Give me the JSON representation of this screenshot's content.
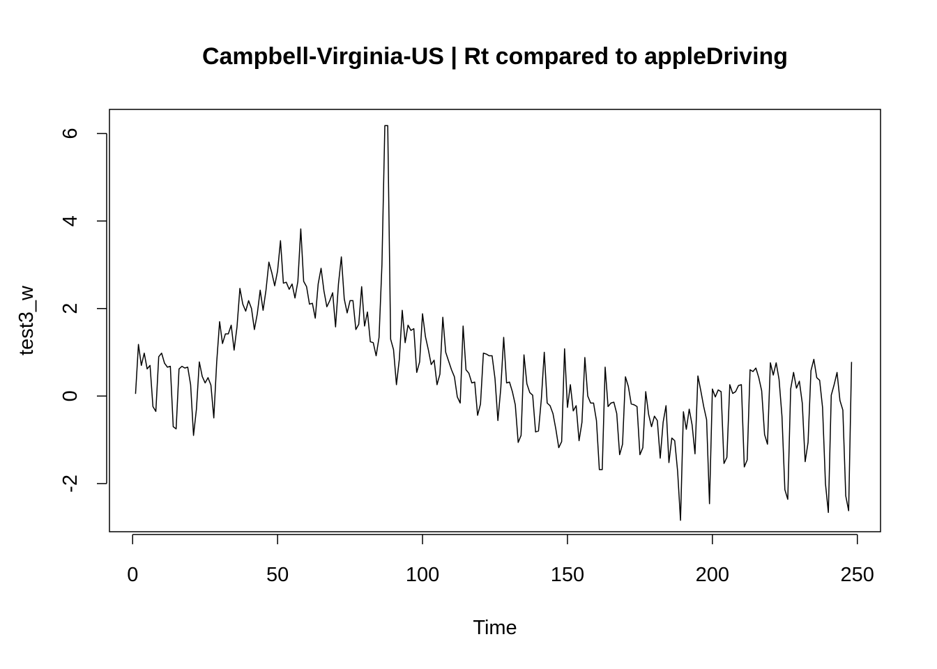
{
  "chart_data": {
    "type": "line",
    "title": "Campbell-Virginia-US | Rt compared to appleDriving",
    "xlabel": "Time",
    "ylabel": "test3_w",
    "xlim": [
      -8,
      258
    ],
    "ylim": [
      -3.1,
      6.55
    ],
    "x_ticks": [
      0,
      50,
      100,
      150,
      200,
      250
    ],
    "y_ticks": [
      -2,
      0,
      2,
      4,
      6
    ],
    "grid": false,
    "legend": "none",
    "line_color": "#000000",
    "x": [
      1,
      2,
      3,
      4,
      5,
      6,
      7,
      8,
      9,
      10,
      11,
      12,
      13,
      14,
      15,
      16,
      17,
      18,
      19,
      20,
      21,
      22,
      23,
      24,
      25,
      26,
      27,
      28,
      29,
      30,
      31,
      32,
      33,
      34,
      35,
      36,
      37,
      38,
      39,
      40,
      41,
      42,
      43,
      44,
      45,
      46,
      47,
      48,
      49,
      50,
      51,
      52,
      53,
      54,
      55,
      56,
      57,
      58,
      59,
      60,
      61,
      62,
      63,
      64,
      65,
      66,
      67,
      68,
      69,
      70,
      71,
      72,
      73,
      74,
      75,
      76,
      77,
      78,
      79,
      80,
      81,
      82,
      83,
      84,
      85,
      86,
      87,
      88,
      89,
      90,
      91,
      92,
      93,
      94,
      95,
      96,
      97,
      98,
      99,
      100,
      101,
      102,
      103,
      104,
      105,
      106,
      107,
      108,
      109,
      110,
      111,
      112,
      113,
      114,
      115,
      116,
      117,
      118,
      119,
      120,
      121,
      122,
      123,
      124,
      125,
      126,
      127,
      128,
      129,
      130,
      131,
      132,
      133,
      134,
      135,
      136,
      137,
      138,
      139,
      140,
      141,
      142,
      143,
      144,
      145,
      146,
      147,
      148,
      149,
      150,
      151,
      152,
      153,
      154,
      155,
      156,
      157,
      158,
      159,
      160,
      161,
      162,
      163,
      164,
      165,
      166,
      167,
      168,
      169,
      170,
      171,
      172,
      173,
      174,
      175,
      176,
      177,
      178,
      179,
      180,
      181,
      182,
      183,
      184,
      185,
      186,
      187,
      188,
      189,
      190,
      191,
      192,
      193,
      194,
      195,
      196,
      197,
      198,
      199,
      200,
      201,
      202,
      203,
      204,
      205,
      206,
      207,
      208,
      209,
      210,
      211,
      212,
      213,
      214,
      215,
      216,
      217,
      218,
      219,
      220,
      221,
      222,
      223,
      224,
      225,
      226,
      227,
      228,
      229,
      230,
      231,
      232,
      233,
      234,
      235,
      236,
      237,
      238,
      239,
      240,
      241,
      242,
      243,
      244,
      245,
      246,
      247,
      248
    ],
    "series": [
      {
        "values": [
          0.05,
          1.18,
          0.7,
          0.98,
          0.62,
          0.7,
          -0.24,
          -0.35,
          0.9,
          0.98,
          0.75,
          0.66,
          0.68,
          -0.7,
          -0.75,
          0.62,
          0.68,
          0.64,
          0.66,
          0.26,
          -0.9,
          -0.3,
          0.78,
          0.45,
          0.3,
          0.42,
          0.25,
          -0.5,
          0.78,
          1.7,
          1.2,
          1.42,
          1.42,
          1.62,
          1.05,
          1.58,
          2.46,
          2.1,
          1.94,
          2.18,
          2.0,
          1.52,
          1.88,
          2.42,
          1.96,
          2.42,
          3.06,
          2.82,
          2.52,
          2.86,
          3.55,
          2.58,
          2.6,
          2.44,
          2.56,
          2.24,
          2.62,
          3.82,
          2.62,
          2.5,
          2.1,
          2.12,
          1.78,
          2.56,
          2.92,
          2.4,
          2.04,
          2.18,
          2.36,
          1.58,
          2.56,
          3.18,
          2.22,
          1.9,
          2.18,
          2.18,
          1.52,
          1.64,
          2.5,
          1.6,
          1.92,
          1.24,
          1.22,
          0.92,
          1.34,
          3.0,
          6.18,
          6.18,
          1.3,
          1.06,
          0.26,
          0.84,
          1.96,
          1.22,
          1.62,
          1.5,
          1.54,
          0.54,
          0.78,
          1.88,
          1.36,
          1.06,
          0.72,
          0.82,
          0.26,
          0.5,
          1.8,
          1.0,
          0.8,
          0.6,
          0.44,
          -0.02,
          -0.16,
          1.6,
          0.6,
          0.52,
          0.3,
          0.32,
          -0.44,
          -0.18,
          0.98,
          0.96,
          0.92,
          0.92,
          0.4,
          -0.56,
          0.18,
          1.34,
          0.3,
          0.32,
          0.1,
          -0.2,
          -1.06,
          -0.9,
          0.94,
          0.28,
          0.08,
          0.02,
          -0.82,
          -0.8,
          -0.06,
          1.0,
          -0.16,
          -0.22,
          -0.4,
          -0.76,
          -1.18,
          -1.04,
          1.08,
          -0.26,
          0.26,
          -0.34,
          -0.22,
          -1.02,
          -0.6,
          0.88,
          0.0,
          -0.16,
          -0.16,
          -0.56,
          -1.68,
          -1.68,
          0.66,
          -0.24,
          -0.16,
          -0.14,
          -0.4,
          -1.34,
          -1.1,
          0.44,
          0.22,
          -0.18,
          -0.2,
          -0.24,
          -1.34,
          -1.18,
          0.1,
          -0.42,
          -0.7,
          -0.46,
          -0.56,
          -1.42,
          -0.6,
          -0.22,
          -1.52,
          -0.96,
          -1.02,
          -1.72,
          -2.84,
          -0.36,
          -0.76,
          -0.3,
          -0.66,
          -1.32,
          0.46,
          0.12,
          -0.24,
          -0.54,
          -2.46,
          0.16,
          -0.02,
          0.14,
          0.1,
          -1.54,
          -1.4,
          0.26,
          0.06,
          0.1,
          0.24,
          0.26,
          -1.62,
          -1.46,
          0.6,
          0.56,
          0.64,
          0.42,
          0.12,
          -0.88,
          -1.1,
          0.76,
          0.48,
          0.76,
          0.38,
          -0.46,
          -2.14,
          -2.36,
          0.16,
          0.54,
          0.18,
          0.34,
          -0.16,
          -1.5,
          -1.06,
          0.58,
          0.84,
          0.42,
          0.36,
          -0.26,
          -2.0,
          -2.66,
          0.02,
          0.26,
          0.54,
          -0.1,
          -0.32,
          -2.28,
          -2.62,
          0.78
        ]
      }
    ]
  }
}
